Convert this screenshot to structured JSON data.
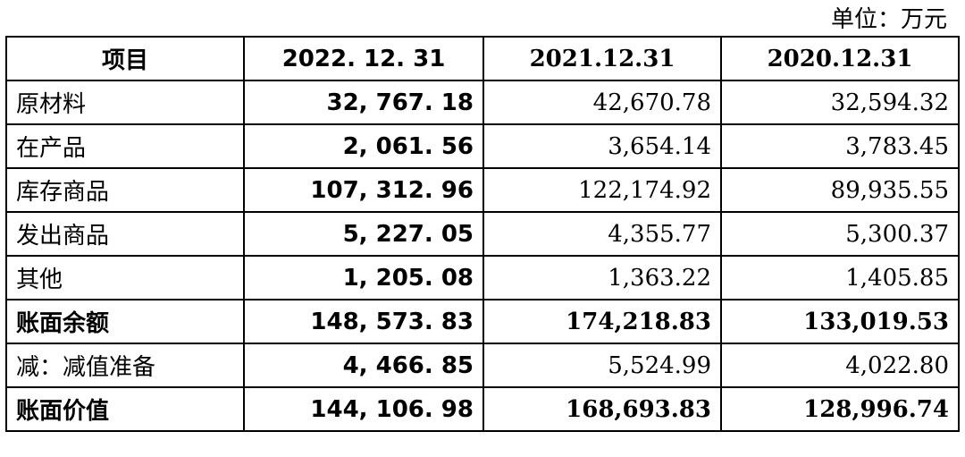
{
  "unit_label": "单位：万元",
  "table": {
    "headers": [
      "项目",
      "2022. 12. 31",
      "2021.12.31",
      "2020.12.31"
    ],
    "rows": [
      {
        "item": "原材料",
        "values": [
          "32, 767. 18",
          "42,670.78",
          "32,594.32"
        ],
        "bold": false
      },
      {
        "item": "在产品",
        "values": [
          "2, 061. 56",
          "3,654.14",
          "3,783.45"
        ],
        "bold": false
      },
      {
        "item": "库存商品",
        "values": [
          "107, 312. 96",
          "122,174.92",
          "89,935.55"
        ],
        "bold": false
      },
      {
        "item": "发出商品",
        "values": [
          "5, 227. 05",
          "4,355.77",
          "5,300.37"
        ],
        "bold": false
      },
      {
        "item": "其他",
        "values": [
          "1, 205. 08",
          "1,363.22",
          "1,405.85"
        ],
        "bold": false
      },
      {
        "item": "账面余额",
        "values": [
          "148, 573. 83",
          "174,218.83",
          "133,019.53"
        ],
        "bold": true
      },
      {
        "item": "减：减值准备",
        "values": [
          "4, 466. 85",
          "5,524.99",
          "4,022.80"
        ],
        "bold": false
      },
      {
        "item": "账面价值",
        "values": [
          "144, 106. 98",
          "168,693.83",
          "128,996.74"
        ],
        "bold": true
      }
    ]
  }
}
